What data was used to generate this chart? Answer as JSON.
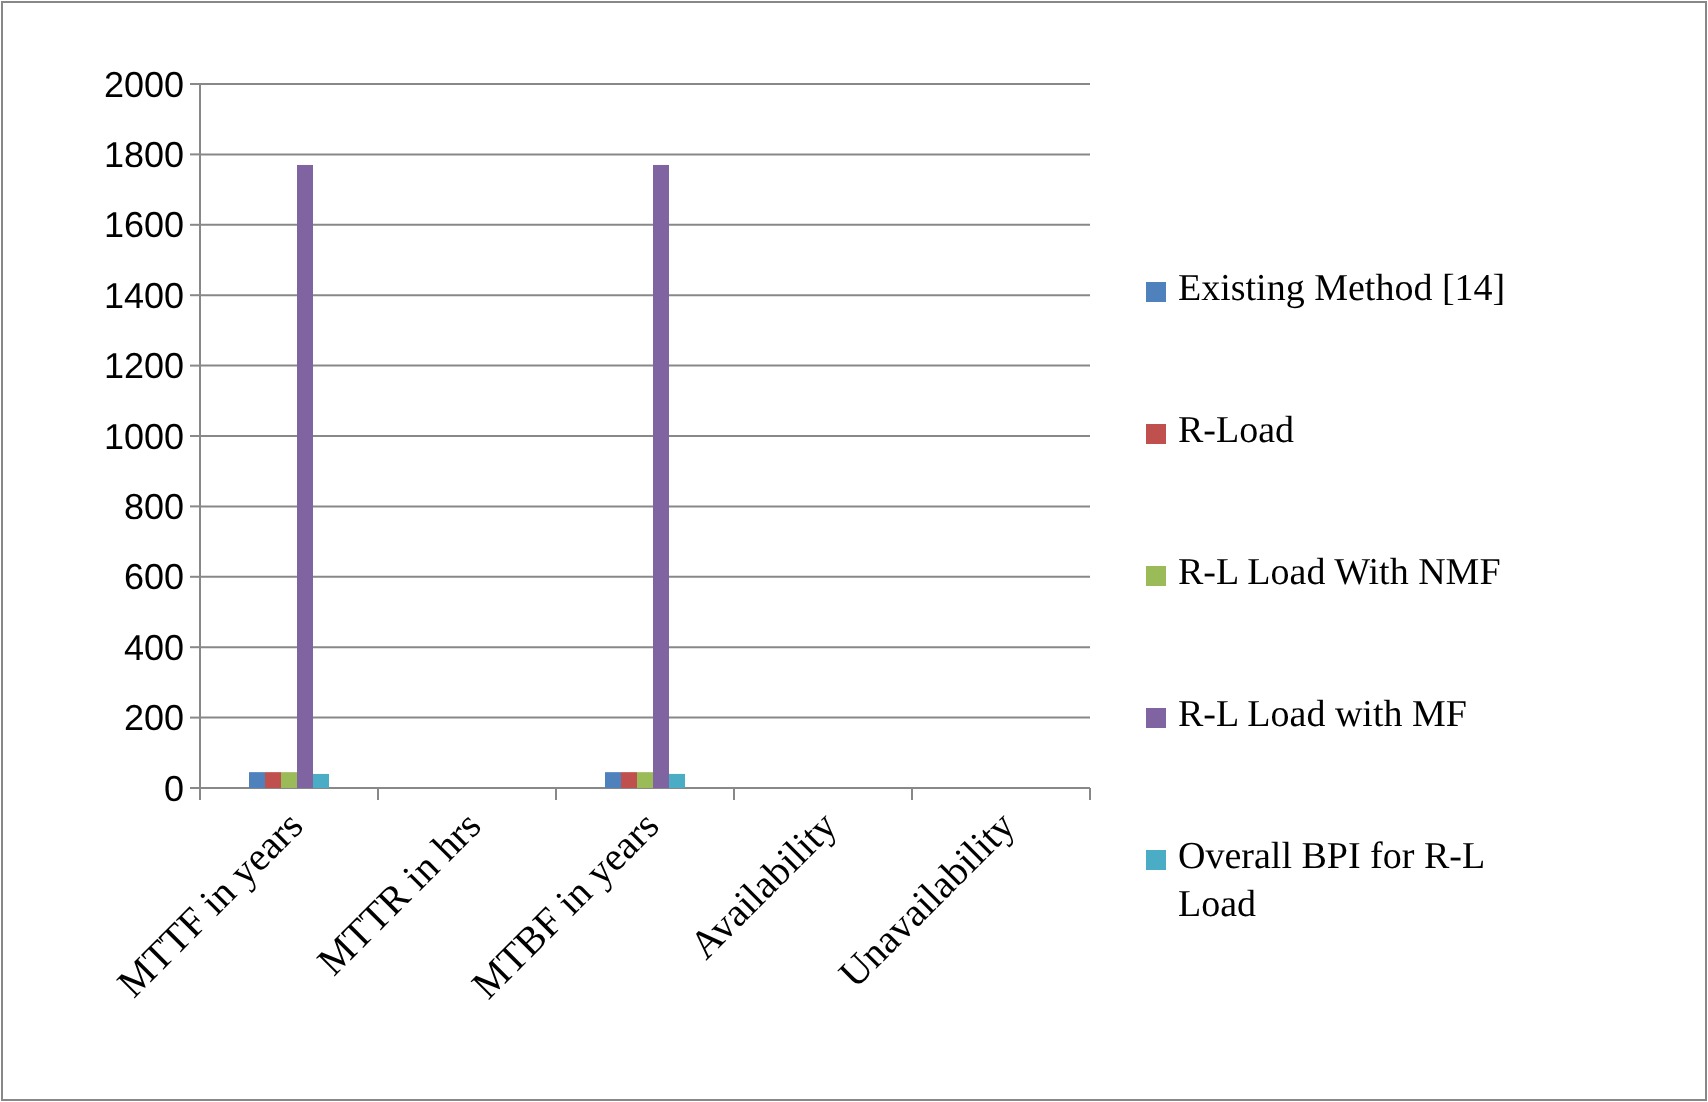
{
  "chart_data": {
    "type": "bar",
    "categories": [
      "MTTF in years",
      "MTTR in hrs",
      "MTBF in years",
      "Availability",
      "Unavailability"
    ],
    "series": [
      {
        "name": "Existing Method [14]",
        "color": "#4f81bd",
        "values": [
          45,
          0,
          45,
          0,
          0
        ]
      },
      {
        "name": "R-Load",
        "color": "#c0504d",
        "values": [
          45,
          0,
          45,
          0,
          0
        ]
      },
      {
        "name": "R-L Load With NMF",
        "color": "#9bbb59",
        "values": [
          45,
          0,
          45,
          0,
          0
        ]
      },
      {
        "name": "R-L Load with MF",
        "color": "#8064a2",
        "values": [
          1770,
          0,
          1770,
          0,
          0
        ]
      },
      {
        "name": "Overall BPI for R-L Load",
        "color": "#4bacc6",
        "values": [
          40,
          0,
          40,
          0,
          0
        ]
      }
    ],
    "ylim": [
      0,
      2000
    ],
    "yticks": [
      0,
      200,
      400,
      600,
      800,
      1000,
      1200,
      1400,
      1600,
      1800,
      2000
    ],
    "grid": "y",
    "legend": "right"
  }
}
